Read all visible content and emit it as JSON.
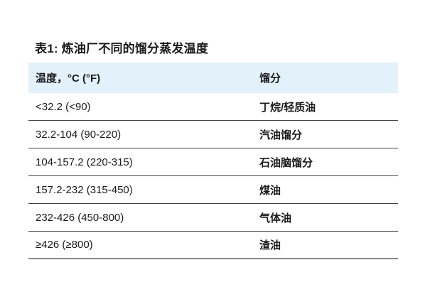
{
  "title": "表1: 炼油厂不同的馏分蒸发温度",
  "table": {
    "headers": [
      "温度，°C (°F)",
      "馏分"
    ],
    "rows": [
      {
        "temperature": "<32.2 (<90)",
        "fraction": "丁烷/轻质油"
      },
      {
        "temperature": "32.2-104 (90-220)",
        "fraction": "汽油馏分"
      },
      {
        "temperature": "104-157.2 (220-315)",
        "fraction": "石油脑馏分"
      },
      {
        "temperature": "157.2-232 (315-450)",
        "fraction": "煤油"
      },
      {
        "temperature": "232-426 (450-800)",
        "fraction": "气体油"
      },
      {
        "temperature": "≥426 (≥800)",
        "fraction": "渣油"
      }
    ]
  },
  "colors": {
    "header_bg": "#e3f1fb",
    "row_border": "#424242",
    "bottom_border": "#8a8a8a",
    "text": "#1a1a1a"
  }
}
